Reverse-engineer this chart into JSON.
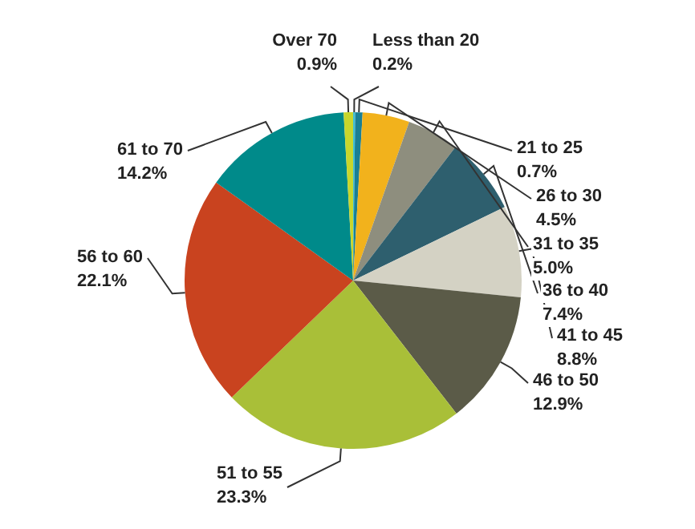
{
  "chart_data": {
    "type": "pie",
    "categories": [
      "Less than 20",
      "21 to 25",
      "26 to 30",
      "31 to 35",
      "36 to 40",
      "41 to 45",
      "46 to 50",
      "51 to 55",
      "56 to 60",
      "61 to 70",
      "Over 70"
    ],
    "values": [
      0.2,
      0.7,
      4.5,
      5.0,
      7.4,
      8.8,
      12.9,
      23.3,
      22.1,
      14.2,
      0.9
    ],
    "value_labels": [
      "0.2%",
      "0.7%",
      "4.5%",
      "5.0%",
      "7.4%",
      "8.8%",
      "12.9%",
      "23.3%",
      "22.1%",
      "14.2%",
      "0.9%"
    ],
    "colors": [
      "#3fc0d8",
      "#1a7f94",
      "#f2b21c",
      "#8e8e7e",
      "#2e5f6e",
      "#d4d2c4",
      "#5b5b48",
      "#a9bf38",
      "#c9431f",
      "#008a8a",
      "#c8d62c"
    ],
    "data_labels": true,
    "legend": false
  }
}
